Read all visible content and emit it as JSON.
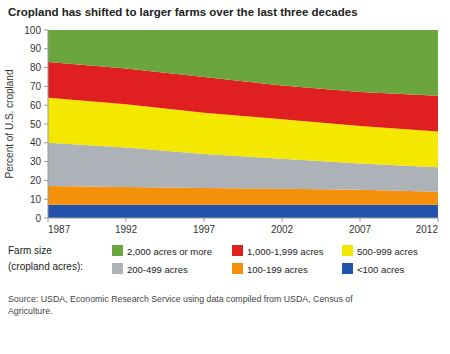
{
  "chart_data": {
    "type": "area",
    "stacked": true,
    "title": "Cropland has shifted to larger farms over the last three decades",
    "y_label": "Percent of U.S. cropland",
    "legend_title": "Farm size\n(cropland acres):",
    "source": "Source: USDA, Economic Research Service using data compiled from USDA, Census of\nAgriculture.",
    "x": [
      1987,
      1992,
      1997,
      2002,
      2007,
      2012
    ],
    "series": [
      {
        "name": "<100 acres",
        "color": "#2255aa",
        "values": [
          7,
          7,
          7,
          7,
          7,
          7
        ]
      },
      {
        "name": "100-199 acres",
        "color": "#f5900a",
        "values": [
          10,
          9.5,
          9,
          8.5,
          8,
          7
        ]
      },
      {
        "name": "200-499 acres",
        "color": "#adb2b8",
        "values": [
          23,
          21,
          18,
          16,
          14,
          13
        ]
      },
      {
        "name": "500-999 acres",
        "color": "#f5e800",
        "values": [
          24,
          23,
          22,
          21,
          20,
          19
        ]
      },
      {
        "name": "1,000-1,999 acres",
        "color": "#e02020",
        "values": [
          19,
          19,
          19,
          18,
          18,
          19
        ]
      },
      {
        "name": "2,000 acres or more",
        "color": "#6aa53d",
        "values": [
          17,
          20.5,
          25,
          29.5,
          33,
          35
        ]
      }
    ],
    "xlim": [
      1987,
      2012
    ],
    "xticks": [
      1987,
      1992,
      1997,
      2002,
      2007,
      2012
    ],
    "ylim": [
      0,
      100
    ],
    "yticks": [
      0,
      10,
      20,
      30,
      40,
      50,
      60,
      70,
      80,
      90,
      100
    ],
    "grid": false,
    "legend": "bottom"
  }
}
